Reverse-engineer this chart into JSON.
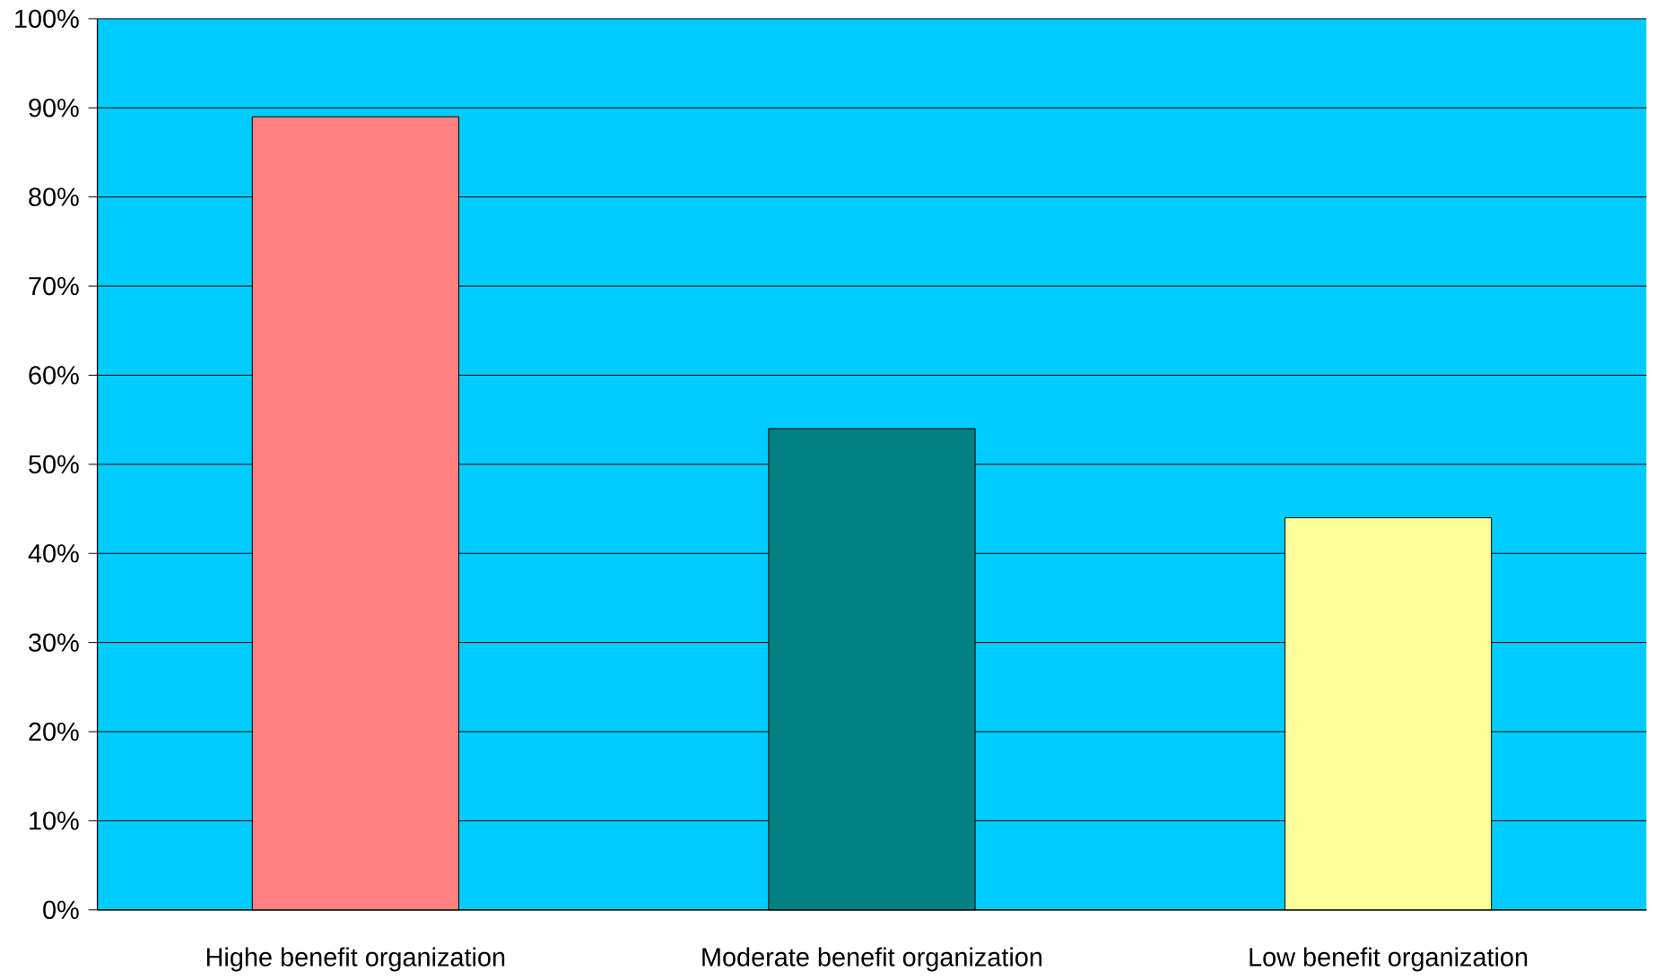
{
  "chart_data": {
    "type": "bar",
    "categories": [
      "Highe benefit organization",
      "Moderate benefit organization",
      "Low benefit organization"
    ],
    "values": [
      89,
      54,
      44
    ],
    "colors": [
      "#ff8080",
      "#008080",
      "#ffff99"
    ],
    "ylim": [
      0,
      100
    ],
    "yticks": [
      {
        "value": 0,
        "label": "0%"
      },
      {
        "value": 10,
        "label": "10%"
      },
      {
        "value": 20,
        "label": "20%"
      },
      {
        "value": 30,
        "label": "30%"
      },
      {
        "value": 40,
        "label": "40%"
      },
      {
        "value": 50,
        "label": "50%"
      },
      {
        "value": 60,
        "label": "60%"
      },
      {
        "value": 70,
        "label": "70%"
      },
      {
        "value": 80,
        "label": "80%"
      },
      {
        "value": 90,
        "label": "90%"
      },
      {
        "value": 100,
        "label": "100%"
      }
    ],
    "grid": "y"
  }
}
